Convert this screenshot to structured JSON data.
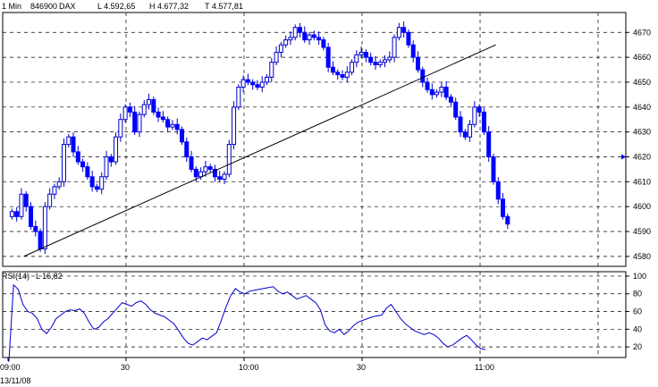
{
  "header": {
    "interval": "1 Min",
    "security_id": "846900",
    "symbol": "DAX",
    "low": "L  4.592,65",
    "high": "H  4.677,32",
    "last": "T  4.577,81"
  },
  "rsi_header": {
    "label": "RSI(14)",
    "last": "L  16,82"
  },
  "date_label": "13/11/08",
  "colors": {
    "candle_up_fill": "#ffffff",
    "candle_up_edge": "#0000cc",
    "candle_down": "#0000ff",
    "rsi_line": "#0000cc",
    "trend_line": "#000000",
    "grid": "#000000",
    "current_marker": "#0000ff"
  },
  "chart_data": [
    {
      "type": "candlestick",
      "title": "",
      "x_ticks": [
        "09:00",
        "30",
        "10:00",
        "30",
        "11:00"
      ],
      "y_ticks": [
        4580,
        4590,
        4600,
        4610,
        4620,
        4630,
        4640,
        4650,
        4660,
        4670
      ],
      "ylim": [
        4576,
        4678
      ],
      "grid": true,
      "y_axis_side": "right",
      "trend_line": {
        "from": {
          "minute": 4,
          "value": 4580
        },
        "to": {
          "minute": 124,
          "value": 4665
        }
      },
      "current_value_marker": 4620,
      "close_series": [
        4598,
        4596,
        4605,
        4600,
        4592,
        4590,
        4583,
        4600,
        4605,
        4608,
        4610,
        4625,
        4628,
        4622,
        4618,
        4616,
        4612,
        4608,
        4607,
        4612,
        4620,
        4618,
        4628,
        4635,
        4640,
        4638,
        4630,
        4637,
        4641,
        4643,
        4638,
        4636,
        4635,
        4632,
        4633,
        4631,
        4626,
        4620,
        4615,
        4612,
        4614,
        4616,
        4615,
        4612,
        4611,
        4613,
        4625,
        4640,
        4648,
        4651,
        4650,
        4649,
        4648,
        4650,
        4652,
        4658,
        4662,
        4665,
        4667,
        4668,
        4672,
        4670,
        4667,
        4669,
        4668,
        4667,
        4664,
        4656,
        4654,
        4653,
        4652,
        4654,
        4658,
        4661,
        4662,
        4660,
        4658,
        4657,
        4658,
        4659,
        4660,
        4668,
        4672,
        4670,
        4665,
        4660,
        4655,
        4650,
        4647,
        4645,
        4646,
        4648,
        4644,
        4642,
        4636,
        4630,
        4628,
        4633,
        4640,
        4638,
        4630,
        4620,
        4610,
        4603,
        4596,
        4593
      ]
    },
    {
      "type": "line",
      "title": "RSI(14)",
      "y_ticks": [
        20,
        40,
        60,
        80,
        100
      ],
      "ylim": [
        8,
        105
      ],
      "grid": true,
      "series": [
        {
          "values": [
            3,
            90,
            85,
            68,
            60,
            58,
            52,
            40,
            35,
            42,
            52,
            56,
            60,
            62,
            61,
            63,
            58,
            48,
            40,
            42,
            48,
            52,
            58,
            64,
            70,
            68,
            66,
            70,
            72,
            68,
            62,
            58,
            56,
            54,
            50,
            46,
            38,
            30,
            24,
            22,
            26,
            30,
            28,
            32,
            36,
            50,
            65,
            78,
            86,
            82,
            80,
            83,
            84,
            85,
            86,
            87,
            88,
            83,
            80,
            82,
            78,
            74,
            76,
            78,
            74,
            70,
            62,
            45,
            38,
            36,
            40,
            34,
            38,
            44,
            48,
            50,
            52,
            54,
            55,
            56,
            64,
            68,
            60,
            52,
            46,
            42,
            38,
            36,
            34,
            36,
            34,
            30,
            24,
            20,
            22,
            26,
            30,
            33,
            28,
            22,
            18,
            17
          ]
        }
      ]
    }
  ]
}
